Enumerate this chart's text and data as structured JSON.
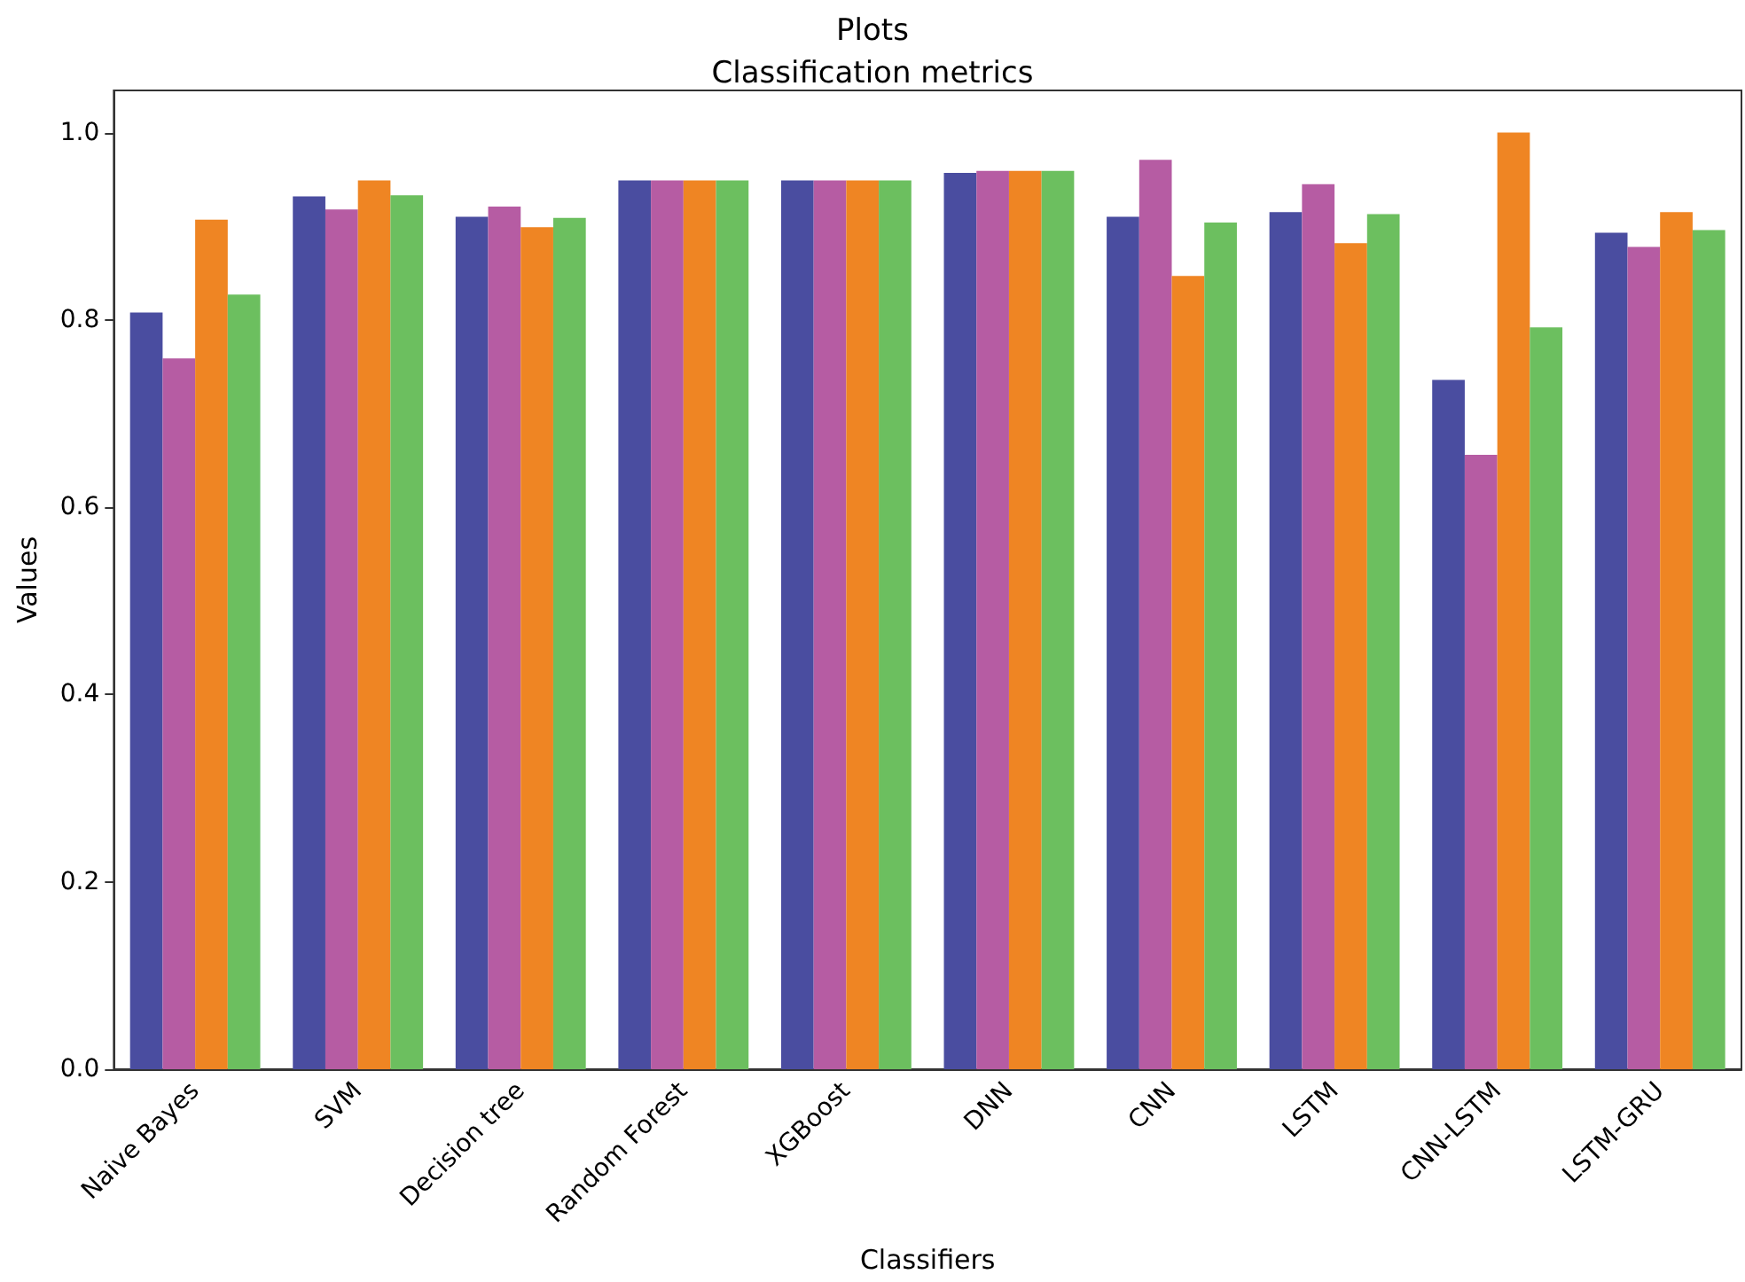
{
  "chart_data": {
    "type": "bar",
    "title": "Plots",
    "subtitle": "Classification metrics",
    "xlabel": "Classifiers",
    "ylabel": "Values",
    "categories": [
      "Naive Bayes",
      "SVM",
      "Decision tree",
      "Random Forest",
      "XGBoost",
      "DNN",
      "CNN",
      "LSTM",
      "CNN-LSTM",
      "LSTM-GRU"
    ],
    "series": [
      {
        "color": "#4a4da0",
        "values": [
          0.808,
          0.932,
          0.91,
          0.949,
          0.949,
          0.957,
          0.91,
          0.915,
          0.736,
          0.893
        ]
      },
      {
        "color": "#b65ca3",
        "values": [
          0.759,
          0.918,
          0.921,
          0.949,
          0.949,
          0.959,
          0.971,
          0.945,
          0.656,
          0.878
        ]
      },
      {
        "color": "#ef8523",
        "values": [
          0.907,
          0.949,
          0.899,
          0.949,
          0.949,
          0.959,
          0.847,
          0.882,
          1.0,
          0.915
        ]
      },
      {
        "color": "#6cbf5f",
        "values": [
          0.827,
          0.933,
          0.909,
          0.949,
          0.949,
          0.959,
          0.904,
          0.913,
          0.792,
          0.896
        ]
      }
    ],
    "ylim": [
      0,
      1.045
    ],
    "yticks": [
      {
        "value": 0,
        "label": "0.0"
      },
      {
        "value": 0.2,
        "label": "0.2"
      },
      {
        "value": 0.4,
        "label": "0.4"
      },
      {
        "value": 0.6,
        "label": "0.6"
      },
      {
        "value": 0.8,
        "label": "0.8"
      },
      {
        "value": 1,
        "label": "1.0"
      }
    ],
    "grid": false
  }
}
